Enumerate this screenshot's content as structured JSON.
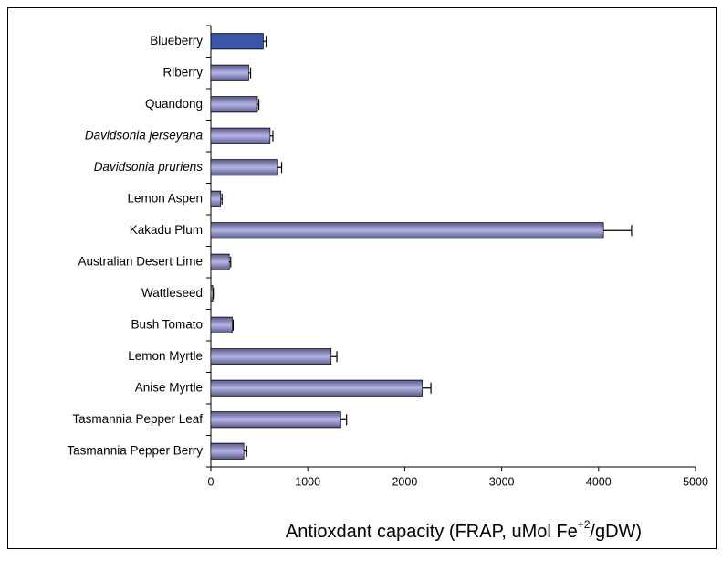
{
  "chart_data": {
    "type": "bar",
    "orientation": "horizontal",
    "categories": [
      "Blueberry",
      "Riberry",
      "Quandong",
      "Davidsonia jerseyana",
      "Davidsonia pruriens",
      "Lemon Aspen",
      "Kakadu Plum",
      "Australian Desert Lime",
      "Wattleseed",
      "Bush Tomato",
      "Lemon Myrtle",
      "Anise Myrtle",
      "Tasmannia Pepper Leaf",
      "Tasmannia Pepper Berry"
    ],
    "italic": [
      false,
      false,
      false,
      true,
      true,
      false,
      false,
      false,
      false,
      false,
      false,
      false,
      false,
      false
    ],
    "values": [
      540,
      390,
      480,
      610,
      690,
      100,
      4050,
      190,
      20,
      220,
      1240,
      2180,
      1340,
      340
    ],
    "errors": [
      30,
      20,
      15,
      30,
      40,
      15,
      290,
      15,
      5,
      10,
      60,
      90,
      60,
      30
    ],
    "colors": [
      "#3b56a8",
      "#8c8cd6",
      "#8c8cd6",
      "#8c8cd6",
      "#8c8cd6",
      "#8c8cd6",
      "#8c8cd6",
      "#8c8cd6",
      "#8c8cd6",
      "#8c8cd6",
      "#8c8cd6",
      "#8c8cd6",
      "#8c8cd6",
      "#8c8cd6"
    ],
    "xlim": [
      0,
      5000
    ],
    "xticks": [
      0,
      1000,
      2000,
      3000,
      4000,
      5000
    ],
    "x_label": [
      "Antioxdant capacity (FRAP, uMol Fe",
      "+2",
      "/gDW)"
    ],
    "grid": false
  }
}
